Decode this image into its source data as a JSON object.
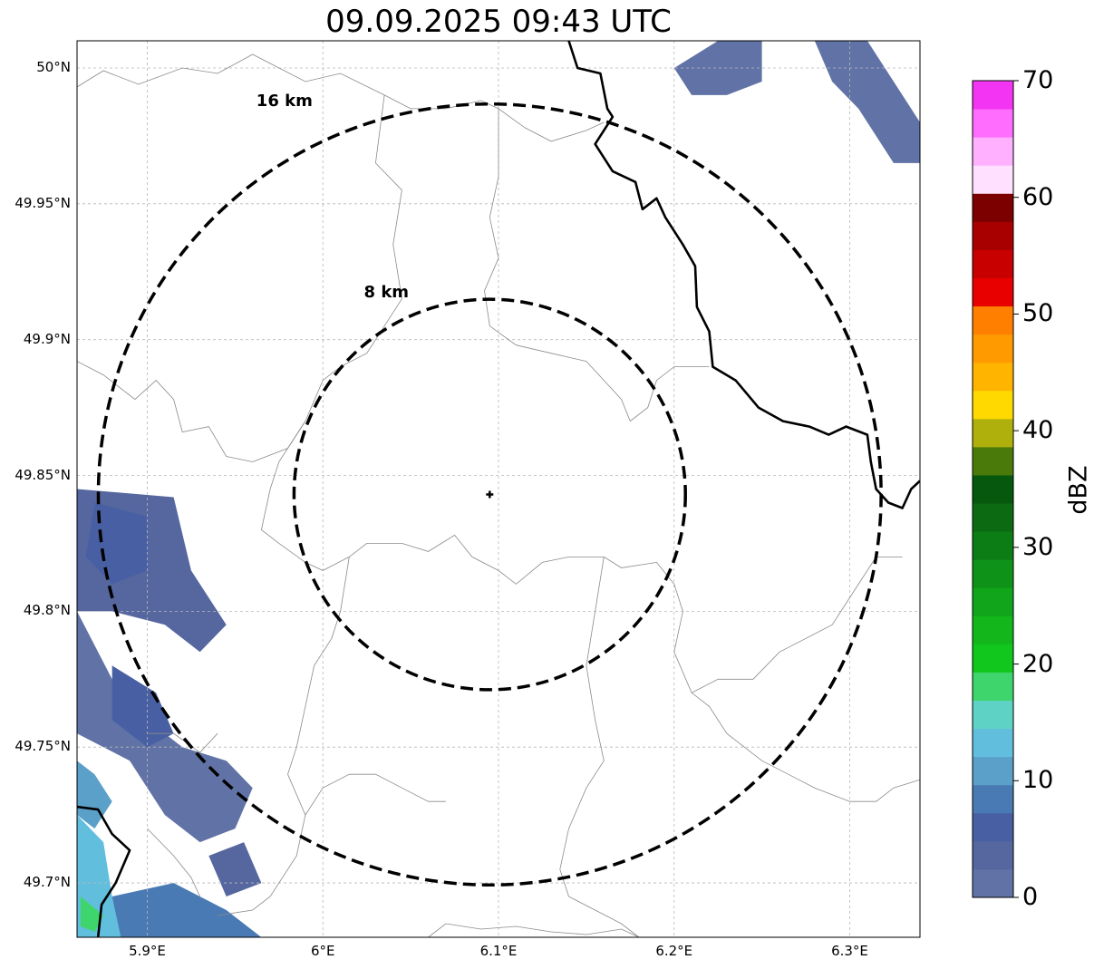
{
  "title": "09.09.2025 09:43 UTC",
  "map": {
    "lon_range": [
      5.86,
      6.34
    ],
    "lat_range": [
      49.68,
      50.01
    ],
    "gridlines": true,
    "lat_ticks": [
      {
        "value": 50.0,
        "label": "50°N"
      },
      {
        "value": 49.95,
        "label": "49.95°N"
      },
      {
        "value": 49.9,
        "label": "49.9°N"
      },
      {
        "value": 49.85,
        "label": "49.85°N"
      },
      {
        "value": 49.8,
        "label": "49.8°N"
      },
      {
        "value": 49.75,
        "label": "49.75°N"
      },
      {
        "value": 49.7,
        "label": "49.7°N"
      }
    ],
    "lon_ticks": [
      {
        "value": 5.9,
        "label": "5.9°E"
      },
      {
        "value": 6.0,
        "label": "6°E"
      },
      {
        "value": 6.1,
        "label": "6.1°E"
      },
      {
        "value": 6.2,
        "label": "6.2°E"
      },
      {
        "value": 6.3,
        "label": "6.3°E"
      }
    ],
    "center": {
      "lon": 6.095,
      "lat": 49.843,
      "marker": "plus"
    },
    "range_rings": [
      {
        "radius_km": 8,
        "label": "8 km"
      },
      {
        "radius_km": 16,
        "label": "16 km"
      }
    ]
  },
  "colorbar": {
    "unit": "dBZ",
    "min": 0,
    "max": 70,
    "tick_values": [
      0,
      10,
      20,
      30,
      40,
      50,
      60,
      70
    ],
    "tick_labels": [
      "0",
      "10",
      "20",
      "30",
      "40",
      "50",
      "60",
      "70"
    ],
    "colors": [
      "#6173a6",
      "#5667a0",
      "#4860a3",
      "#4a7ab3",
      "#5aa0c8",
      "#62bedd",
      "#5fd2c6",
      "#3ed66c",
      "#11c71e",
      "#13b71b",
      "#10a51a",
      "#0e9318",
      "#0c7d15",
      "#0b6a12",
      "#05580e",
      "#4a7b0a",
      "#afb00c",
      "#ffd900",
      "#ffb400",
      "#ff9a00",
      "#ff7f00",
      "#e80000",
      "#c80000",
      "#a80000",
      "#7c0000",
      "#ffe0ff",
      "#ffb1ff",
      "#ff6dff",
      "#f335f3"
    ]
  },
  "colors": {
    "border": "#000000",
    "admin": "#8a8a8a",
    "grid": "#b8b8b8",
    "rings": "#000000"
  },
  "echo_areas": [
    {
      "dbz": 3,
      "points": [
        [
          5.86,
          49.845
        ],
        [
          5.915,
          49.842
        ],
        [
          5.925,
          49.815
        ],
        [
          5.945,
          49.795
        ],
        [
          5.93,
          49.785
        ],
        [
          5.91,
          49.795
        ],
        [
          5.88,
          49.8
        ],
        [
          5.86,
          49.8
        ]
      ]
    },
    {
      "dbz": 5,
      "points": [
        [
          5.87,
          49.84
        ],
        [
          5.9,
          49.835
        ],
        [
          5.9,
          49.815
        ],
        [
          5.88,
          49.81
        ],
        [
          5.865,
          49.82
        ]
      ]
    },
    {
      "dbz": 2,
      "points": [
        [
          5.86,
          49.8
        ],
        [
          5.88,
          49.775
        ],
        [
          5.9,
          49.76
        ],
        [
          5.92,
          49.75
        ],
        [
          5.945,
          49.745
        ],
        [
          5.96,
          49.735
        ],
        [
          5.95,
          49.72
        ],
        [
          5.93,
          49.715
        ],
        [
          5.91,
          49.725
        ],
        [
          5.89,
          49.745
        ],
        [
          5.86,
          49.755
        ]
      ]
    },
    {
      "dbz": 5,
      "points": [
        [
          5.88,
          49.78
        ],
        [
          5.905,
          49.77
        ],
        [
          5.915,
          49.755
        ],
        [
          5.9,
          49.75
        ],
        [
          5.88,
          49.76
        ]
      ]
    },
    {
      "dbz": 12,
      "points": [
        [
          5.86,
          49.745
        ],
        [
          5.87,
          49.74
        ],
        [
          5.88,
          49.73
        ],
        [
          5.87,
          49.72
        ],
        [
          5.86,
          49.725
        ]
      ]
    },
    {
      "dbz": 14,
      "points": [
        [
          5.86,
          49.725
        ],
        [
          5.875,
          49.715
        ],
        [
          5.88,
          49.695
        ],
        [
          5.91,
          49.69
        ],
        [
          5.93,
          49.68
        ],
        [
          5.86,
          49.68
        ]
      ]
    },
    {
      "dbz": 9,
      "points": [
        [
          5.88,
          49.695
        ],
        [
          5.915,
          49.7
        ],
        [
          5.945,
          49.69
        ],
        [
          5.965,
          49.68
        ],
        [
          5.885,
          49.68
        ]
      ]
    },
    {
      "dbz": 3,
      "points": [
        [
          5.935,
          49.71
        ],
        [
          5.955,
          49.715
        ],
        [
          5.965,
          49.7
        ],
        [
          5.945,
          49.695
        ]
      ]
    },
    {
      "dbz": 18,
      "points": [
        [
          5.862,
          49.695
        ],
        [
          5.875,
          49.688
        ],
        [
          5.87,
          49.682
        ],
        [
          5.862,
          49.684
        ]
      ]
    },
    {
      "dbz": 2,
      "points": [
        [
          6.2,
          50.0
        ],
        [
          6.225,
          50.01
        ],
        [
          6.25,
          50.01
        ],
        [
          6.25,
          49.995
        ],
        [
          6.23,
          49.99
        ],
        [
          6.21,
          49.99
        ]
      ]
    },
    {
      "dbz": 2,
      "points": [
        [
          6.28,
          50.01
        ],
        [
          6.31,
          50.01
        ],
        [
          6.34,
          49.98
        ],
        [
          6.34,
          49.965
        ],
        [
          6.325,
          49.965
        ],
        [
          6.305,
          49.985
        ],
        [
          6.29,
          49.995
        ]
      ]
    }
  ],
  "national_border": [
    [
      [
        6.14,
        50.01
      ],
      [
        6.145,
        50.0
      ],
      [
        6.158,
        49.998
      ],
      [
        6.162,
        49.985
      ],
      [
        6.165,
        49.982
      ],
      [
        6.155,
        49.972
      ],
      [
        6.165,
        49.962
      ],
      [
        6.178,
        49.958
      ],
      [
        6.182,
        49.948
      ],
      [
        6.19,
        49.952
      ],
      [
        6.195,
        49.945
      ],
      [
        6.205,
        49.935
      ],
      [
        6.212,
        49.927
      ],
      [
        6.213,
        49.912
      ],
      [
        6.22,
        49.903
      ],
      [
        6.222,
        49.89
      ],
      [
        6.235,
        49.885
      ],
      [
        6.248,
        49.875
      ],
      [
        6.262,
        49.87
      ],
      [
        6.277,
        49.868
      ],
      [
        6.288,
        49.865
      ],
      [
        6.298,
        49.868
      ],
      [
        6.31,
        49.865
      ],
      [
        6.312,
        49.855
      ],
      [
        6.315,
        49.845
      ],
      [
        6.322,
        49.84
      ],
      [
        6.33,
        49.838
      ],
      [
        6.335,
        49.845
      ],
      [
        6.34,
        49.848
      ]
    ],
    [
      [
        5.86,
        49.728
      ],
      [
        5.872,
        49.727
      ],
      [
        5.88,
        49.718
      ],
      [
        5.89,
        49.712
      ],
      [
        5.882,
        49.7
      ],
      [
        5.874,
        49.692
      ],
      [
        5.872,
        49.68
      ]
    ]
  ],
  "admin_lines": [
    [
      [
        5.86,
        49.993
      ],
      [
        5.875,
        49.999
      ],
      [
        5.895,
        49.994
      ],
      [
        5.92,
        50.0
      ],
      [
        5.94,
        49.998
      ],
      [
        5.96,
        50.005
      ],
      [
        5.99,
        49.995
      ],
      [
        6.01,
        49.998
      ],
      [
        6.035,
        49.99
      ],
      [
        6.05,
        49.985
      ],
      [
        6.07,
        49.985
      ],
      [
        6.09,
        49.988
      ],
      [
        6.1,
        49.985
      ],
      [
        6.115,
        49.978
      ],
      [
        6.13,
        49.973
      ],
      [
        6.15,
        49.977
      ],
      [
        6.16,
        49.98
      ]
    ],
    [
      [
        6.035,
        49.99
      ],
      [
        6.03,
        49.965
      ],
      [
        6.045,
        49.955
      ],
      [
        6.04,
        49.935
      ],
      [
        6.045,
        49.915
      ],
      [
        6.035,
        49.905
      ],
      [
        6.025,
        49.895
      ],
      [
        6.01,
        49.89
      ],
      [
        6.0,
        49.885
      ],
      [
        5.99,
        49.87
      ],
      [
        5.98,
        49.86
      ],
      [
        5.96,
        49.855
      ],
      [
        5.945,
        49.857
      ],
      [
        5.935,
        49.868
      ],
      [
        5.92,
        49.866
      ],
      [
        5.915,
        49.878
      ],
      [
        5.905,
        49.885
      ],
      [
        5.893,
        49.878
      ],
      [
        5.875,
        49.887
      ],
      [
        5.86,
        49.892
      ]
    ],
    [
      [
        6.1,
        49.985
      ],
      [
        6.1,
        49.96
      ],
      [
        6.095,
        49.945
      ],
      [
        6.1,
        49.93
      ],
      [
        6.092,
        49.918
      ],
      [
        6.095,
        49.905
      ],
      [
        6.11,
        49.898
      ],
      [
        6.13,
        49.895
      ],
      [
        6.15,
        49.892
      ],
      [
        6.16,
        49.885
      ],
      [
        6.17,
        49.878
      ],
      [
        6.175,
        49.87
      ],
      [
        6.185,
        49.875
      ],
      [
        6.19,
        49.885
      ],
      [
        6.2,
        49.89
      ],
      [
        6.21,
        49.89
      ],
      [
        6.22,
        49.89
      ]
    ],
    [
      [
        5.99,
        49.87
      ],
      [
        5.975,
        49.855
      ],
      [
        5.97,
        49.845
      ],
      [
        5.965,
        49.83
      ],
      [
        5.975,
        49.825
      ],
      [
        5.99,
        49.818
      ],
      [
        6.0,
        49.815
      ],
      [
        6.015,
        49.82
      ],
      [
        6.025,
        49.825
      ],
      [
        6.045,
        49.825
      ],
      [
        6.06,
        49.822
      ],
      [
        6.075,
        49.828
      ],
      [
        6.085,
        49.82
      ],
      [
        6.1,
        49.815
      ],
      [
        6.11,
        49.81
      ],
      [
        6.125,
        49.818
      ],
      [
        6.14,
        49.82
      ],
      [
        6.16,
        49.82
      ],
      [
        6.17,
        49.816
      ],
      [
        6.19,
        49.818
      ],
      [
        6.2,
        49.81
      ],
      [
        6.205,
        49.8
      ],
      [
        6.2,
        49.785
      ],
      [
        6.21,
        49.77
      ],
      [
        6.22,
        49.765
      ],
      [
        6.23,
        49.755
      ],
      [
        6.25,
        49.745
      ],
      [
        6.265,
        49.74
      ],
      [
        6.28,
        49.735
      ],
      [
        6.3,
        49.73
      ],
      [
        6.315,
        49.73
      ],
      [
        6.325,
        49.735
      ],
      [
        6.34,
        49.738
      ]
    ],
    [
      [
        6.015,
        49.82
      ],
      [
        6.01,
        49.8
      ],
      [
        6.005,
        49.79
      ],
      [
        5.995,
        49.78
      ],
      [
        5.99,
        49.765
      ],
      [
        5.985,
        49.75
      ],
      [
        5.98,
        49.74
      ],
      [
        5.99,
        49.725
      ],
      [
        5.985,
        49.71
      ],
      [
        5.97,
        49.695
      ],
      [
        5.96,
        49.69
      ],
      [
        5.94,
        49.688
      ]
    ],
    [
      [
        5.99,
        49.725
      ],
      [
        6.0,
        49.735
      ],
      [
        6.015,
        49.74
      ],
      [
        6.03,
        49.74
      ],
      [
        6.045,
        49.735
      ],
      [
        6.06,
        49.73
      ],
      [
        6.07,
        49.73
      ]
    ],
    [
      [
        6.16,
        49.82
      ],
      [
        6.155,
        49.8
      ],
      [
        6.15,
        49.78
      ],
      [
        6.155,
        49.76
      ],
      [
        6.16,
        49.745
      ],
      [
        6.15,
        49.735
      ],
      [
        6.14,
        49.72
      ],
      [
        6.135,
        49.705
      ],
      [
        6.14,
        49.695
      ],
      [
        6.155,
        49.69
      ],
      [
        6.17,
        49.685
      ],
      [
        6.18,
        49.68
      ]
    ],
    [
      [
        6.21,
        49.77
      ],
      [
        6.225,
        49.775
      ],
      [
        6.245,
        49.775
      ],
      [
        6.26,
        49.785
      ],
      [
        6.275,
        49.79
      ],
      [
        6.29,
        49.795
      ],
      [
        6.305,
        49.81
      ],
      [
        6.315,
        49.82
      ],
      [
        6.33,
        49.82
      ]
    ],
    [
      [
        5.9,
        49.755
      ],
      [
        5.915,
        49.755
      ],
      [
        5.93,
        49.748
      ],
      [
        5.94,
        49.755
      ]
    ],
    [
      [
        6.06,
        49.68
      ],
      [
        6.07,
        49.685
      ],
      [
        6.09,
        49.683
      ],
      [
        6.11,
        49.684
      ],
      [
        6.13,
        49.682
      ],
      [
        6.15,
        49.681
      ],
      [
        6.17,
        49.683
      ],
      [
        6.18,
        49.68
      ]
    ],
    [
      [
        5.9,
        49.72
      ],
      [
        5.915,
        49.71
      ],
      [
        5.925,
        49.702
      ],
      [
        5.93,
        49.695
      ]
    ]
  ]
}
